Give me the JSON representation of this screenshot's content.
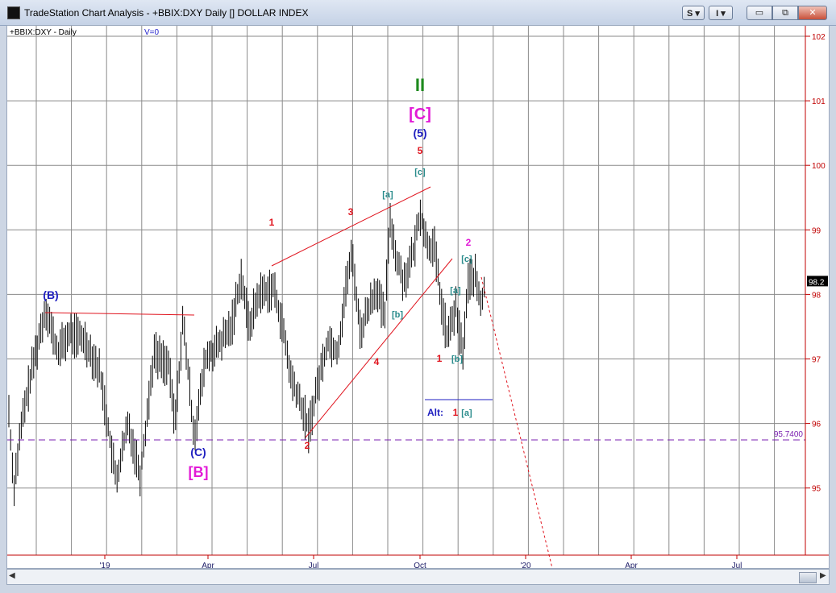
{
  "window": {
    "title": "TradeStation Chart Analysis - +BBIX:DXY Daily [] DOLLAR INDEX",
    "btn_s": "S ▾",
    "btn_i": "I ▾",
    "minimize": "▭",
    "maximize": "⧉",
    "close": "✕"
  },
  "chart": {
    "symbol_label": "+BBIX:DXY - Daily",
    "volume_label": "V=0",
    "last_price": "98.2",
    "level_label": "95.7400",
    "y_ticks": [
      "102",
      "101",
      "100",
      "99",
      "98",
      "97",
      "96",
      "95"
    ],
    "x_ticks": [
      "'19",
      "Apr",
      "Jul",
      "Oct",
      "'20",
      "Apr",
      "Jul"
    ],
    "wave_labels": {
      "major_II": "II",
      "C_bracket": "[C]",
      "five_paren": "(5)",
      "five": "5",
      "c_small_top": "[c]",
      "a_small": "[a]",
      "three": "3",
      "one_left": "1",
      "B_paren": "(B)",
      "C_paren": "(C)",
      "B_bracket": "[B]",
      "two_low": "2",
      "four": "4",
      "b_small_left": "[b]",
      "two_magenta": "2",
      "c_small_right": "[c]",
      "a_small_right": "[a]",
      "one_right": "1",
      "b_small_right": "[b]",
      "alt": "Alt:",
      "alt_one": "1",
      "alt_a": "[a]"
    },
    "colors": {
      "price_bars": "#000000",
      "wave_red": "#e0141e",
      "wave_blue": "#1f1fc0",
      "wave_magenta": "#e21ad6",
      "wave_teal": "#2a8c8c",
      "wave_green": "#1e8a1e",
      "axis_red": "#c00000",
      "level_line": "#7a1fb0",
      "grid": "#8a8a8a"
    }
  }
}
